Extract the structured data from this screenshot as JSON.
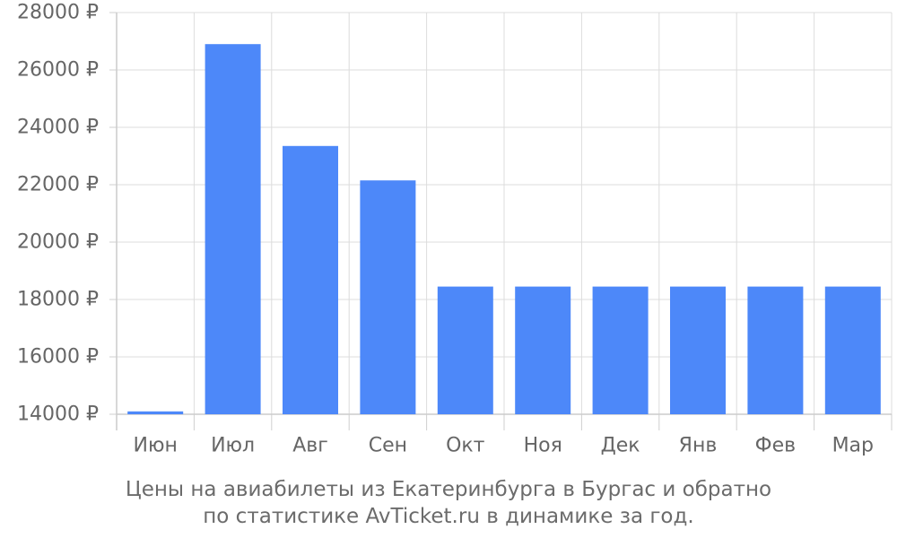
{
  "chart_data": {
    "type": "bar",
    "categories": [
      "Июн",
      "Июл",
      "Авг",
      "Сен",
      "Окт",
      "Ноя",
      "Дек",
      "Янв",
      "Фев",
      "Мар"
    ],
    "values": [
      14100,
      26900,
      23350,
      22150,
      18450,
      18450,
      18450,
      18450,
      18450,
      18450
    ],
    "ylim": [
      14000,
      28000
    ],
    "yticks": [
      14000,
      16000,
      18000,
      20000,
      22000,
      24000,
      26000,
      28000
    ],
    "ytick_suffix": " ₽",
    "grid": true,
    "bar_color": "#4d88f9",
    "caption_line1": "Цены на авиабилеты из Екатеринбурга в Бургас и обратно",
    "caption_line2": "по статистике AvTicket.ru в динамике за год."
  }
}
